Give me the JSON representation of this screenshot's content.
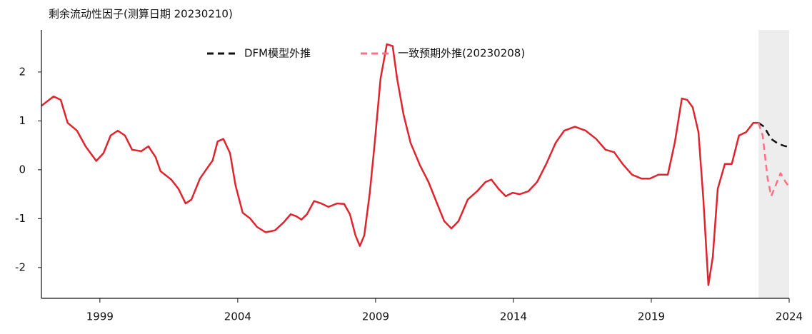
{
  "chart_data": {
    "type": "line",
    "title": "剩余流动性因子(测算日期 20230210)",
    "xlim": [
      1996.88,
      2024
    ],
    "ylim": [
      -2.63,
      2.86
    ],
    "xticks": [
      1999,
      2004,
      2009,
      2014,
      2019,
      2024
    ],
    "yticks": [
      -2,
      -1,
      0,
      1,
      2
    ],
    "shaded_region": [
      2022.89,
      2024
    ],
    "legend": "top",
    "series": [
      {
        "color": "#e0242e",
        "style": "solid",
        "x": [
          1996.88,
          1997.32,
          1997.58,
          1997.83,
          1998.17,
          1998.48,
          1998.87,
          1999.13,
          1999.39,
          1999.65,
          1999.91,
          2000.17,
          2000.5,
          2000.76,
          2001.02,
          2001.2,
          2001.59,
          2001.85,
          2002.11,
          2002.32,
          2002.63,
          2002.89,
          2003.09,
          2003.27,
          2003.48,
          2003.72,
          2003.92,
          2004.18,
          2004.44,
          2004.7,
          2005.01,
          2005.35,
          2005.66,
          2005.92,
          2006.12,
          2006.31,
          2006.51,
          2006.77,
          2007.03,
          2007.29,
          2007.6,
          2007.86,
          2008.07,
          2008.27,
          2008.43,
          2008.59,
          2008.79,
          2008.97,
          2009.18,
          2009.41,
          2009.62,
          2009.78,
          2010.01,
          2010.27,
          2010.61,
          2010.92,
          2011.23,
          2011.49,
          2011.75,
          2012.01,
          2012.34,
          2012.68,
          2012.99,
          2013.2,
          2013.46,
          2013.72,
          2013.97,
          2014.23,
          2014.54,
          2014.86,
          2015.19,
          2015.53,
          2015.84,
          2016.23,
          2016.62,
          2017.0,
          2017.34,
          2017.65,
          2017.96,
          2018.3,
          2018.64,
          2018.95,
          2019.26,
          2019.6,
          2019.85,
          2020.11,
          2020.3,
          2020.5,
          2020.71,
          2020.89,
          2021.07,
          2021.23,
          2021.41,
          2021.67,
          2021.92,
          2022.18,
          2022.44,
          2022.7,
          2022.89
        ],
        "values": [
          1.31,
          1.5,
          1.43,
          0.96,
          0.8,
          0.48,
          0.18,
          0.34,
          0.7,
          0.8,
          0.7,
          0.41,
          0.38,
          0.48,
          0.26,
          -0.03,
          -0.2,
          -0.39,
          -0.69,
          -0.61,
          -0.18,
          0.03,
          0.19,
          0.58,
          0.63,
          0.34,
          -0.32,
          -0.88,
          -0.99,
          -1.17,
          -1.28,
          -1.24,
          -1.08,
          -0.91,
          -0.95,
          -1.02,
          -0.91,
          -0.64,
          -0.69,
          -0.76,
          -0.69,
          -0.7,
          -0.91,
          -1.34,
          -1.56,
          -1.34,
          -0.47,
          0.55,
          1.87,
          2.57,
          2.53,
          1.87,
          1.14,
          0.55,
          0.09,
          -0.25,
          -0.69,
          -1.05,
          -1.2,
          -1.05,
          -0.61,
          -0.44,
          -0.25,
          -0.2,
          -0.39,
          -0.54,
          -0.47,
          -0.5,
          -0.44,
          -0.25,
          0.12,
          0.55,
          0.8,
          0.88,
          0.8,
          0.63,
          0.41,
          0.36,
          0.12,
          -0.1,
          -0.18,
          -0.18,
          -0.1,
          -0.1,
          0.55,
          1.46,
          1.43,
          1.28,
          0.77,
          -0.61,
          -2.36,
          -1.78,
          -0.39,
          0.12,
          0.12,
          0.7,
          0.77,
          0.96,
          0.96
        ]
      },
      {
        "name": "DFM模型外推",
        "color": "#111111",
        "style": "dashed",
        "x": [
          2022.89,
          2023.09,
          2023.35,
          2023.61,
          2023.87,
          2024.0
        ],
        "values": [
          0.96,
          0.88,
          0.63,
          0.53,
          0.48,
          0.48
        ]
      },
      {
        "name": "一致预期外推(20230208)",
        "color": "#ff6f86",
        "style": "dashed",
        "x": [
          2022.89,
          2023.04,
          2023.22,
          2023.35,
          2023.56,
          2023.69,
          2023.87,
          2024.0
        ],
        "values": [
          0.96,
          0.7,
          -0.18,
          -0.54,
          -0.25,
          -0.07,
          -0.25,
          -0.35
        ]
      }
    ]
  }
}
